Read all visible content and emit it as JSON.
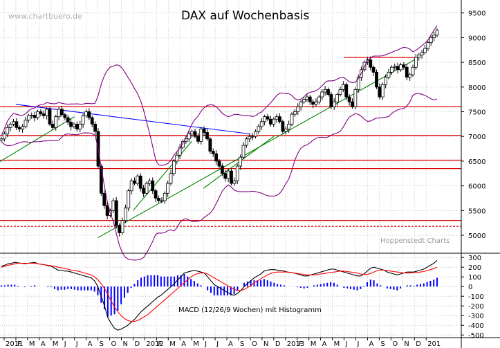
{
  "chart_data": {
    "type": "candlestick",
    "title": "DAX auf Wochenbasis",
    "watermark": "www.chartbuero.de",
    "source": "Hoppenstedt Charts",
    "macd_label": "MACD (12/26/9 Wochen) mit Histogramm",
    "price_axis": {
      "ticks": [
        5000,
        5500,
        6000,
        6500,
        7000,
        7500,
        8000,
        8500,
        9000,
        9500
      ],
      "range": [
        4650,
        9650
      ]
    },
    "macd_axis": {
      "ticks": [
        300,
        200,
        100,
        0,
        -100,
        -200,
        -300,
        -400,
        -500
      ],
      "range": [
        -520,
        330
      ]
    },
    "time_axis": {
      "labels": [
        "2011",
        "F",
        "M",
        "A",
        "M",
        "J",
        "J",
        "A",
        "S",
        "O",
        "N",
        "D",
        "2012",
        "F",
        "M",
        "A",
        "M",
        "J",
        "J",
        "A",
        "S",
        "O",
        "N",
        "D",
        "2013",
        "F",
        "M",
        "A",
        "M",
        "J",
        "J",
        "A",
        "S",
        "O",
        "N",
        "D",
        "201"
      ],
      "start": "2011-01",
      "end": "2014-01"
    },
    "weekly_close": [
      6950,
      7050,
      7180,
      7250,
      7300,
      7180,
      7150,
      7200,
      7330,
      7420,
      7430,
      7380,
      7500,
      7460,
      7420,
      7550,
      7250,
      7180,
      7400,
      7550,
      7440,
      7380,
      7290,
      7200,
      7250,
      7150,
      7250,
      7420,
      7500,
      7380,
      7250,
      7100,
      6400,
      5850,
      5600,
      5400,
      5500,
      5700,
      5200,
      5050,
      5300,
      5550,
      5900,
      6100,
      6050,
      6200,
      5950,
      5850,
      6050,
      6100,
      5900,
      5750,
      5700,
      5700,
      5850,
      6050,
      6250,
      6500,
      6620,
      6780,
      6900,
      6950,
      7050,
      7100,
      7000,
      6900,
      7150,
      7080,
      6950,
      6700,
      6650,
      6500,
      6400,
      6250,
      6150,
      6300,
      6050,
      6100,
      6400,
      6580,
      6820,
      6950,
      7000,
      7000,
      7100,
      7200,
      7300,
      7400,
      7350,
      7250,
      7350,
      7400,
      7300,
      7100,
      7150,
      7250,
      7450,
      7500,
      7600,
      7700,
      7750,
      7800,
      7700,
      7650,
      7700,
      7800,
      7900,
      7950,
      7850,
      7600,
      7700,
      7850,
      7950,
      8050,
      7800,
      7700,
      7600,
      7950,
      8200,
      8350,
      8500,
      8550,
      8400,
      8300,
      8000,
      7800,
      8050,
      8200,
      8300,
      8400,
      8420,
      8350,
      8450,
      8400,
      8200,
      8250,
      8400,
      8600,
      8650,
      8700,
      8780,
      8900,
      9000,
      9050,
      9150
    ],
    "resistance_levels": [
      7600,
      7020,
      6520,
      6350,
      5300,
      5180,
      8600
    ],
    "trend_lines": [
      {
        "name": "Abwaertstrend",
        "from": [
          "2011-02",
          7650
        ],
        "to": [
          "2012-10",
          7050
        ]
      },
      {
        "name": "Aufwaertstrend 2011",
        "from": [
          "2010-12",
          6400
        ],
        "to": [
          "2011-07",
          7400
        ]
      },
      {
        "name": "Aufwaertstrend 2011-2013",
        "from": [
          "2011-09",
          4950
        ],
        "to": [
          "2013-12",
          8550
        ]
      },
      {
        "name": "Aufwaertstrend 2012",
        "from": [
          "2012-06",
          5950
        ],
        "to": [
          "2012-12",
          7000
        ]
      },
      {
        "name": "Aufwaertstrend 2011-2012",
        "from": [
          "2011-12",
          5500
        ],
        "to": [
          "2012-05",
          6900
        ]
      }
    ],
    "macd_line": [
      210,
      220,
      235,
      240,
      250,
      245,
      240,
      235,
      240,
      245,
      250,
      235,
      230,
      225,
      215,
      210,
      190,
      170,
      170,
      160,
      160,
      150,
      140,
      130,
      120,
      110,
      100,
      90,
      60,
      0,
      -100,
      -200,
      -320,
      -380,
      -430,
      -450,
      -440,
      -420,
      -400,
      -370,
      -340,
      -300,
      -260,
      -230,
      -200,
      -170,
      -140,
      -110,
      -90,
      -60,
      -30,
      0,
      30,
      70,
      100,
      140,
      150,
      160,
      165,
      160,
      150,
      140,
      100,
      60,
      20,
      0,
      -20,
      -40,
      -60,
      -80,
      -90,
      -70,
      -40,
      0,
      30,
      60,
      90,
      110,
      130,
      160,
      170,
      175,
      175,
      170,
      165,
      160,
      150,
      145,
      140,
      130,
      120,
      110,
      110,
      120,
      130,
      140,
      150,
      160,
      170,
      180,
      180,
      170,
      160,
      150,
      140,
      130,
      120,
      110,
      110,
      130,
      160,
      190,
      200,
      190,
      180,
      170,
      150,
      140,
      130,
      120,
      130,
      140,
      150,
      150,
      150,
      160,
      170,
      180,
      200,
      220,
      240,
      270
    ],
    "signal_line": [
      200,
      210,
      220,
      225,
      235,
      240,
      240,
      240,
      240,
      240,
      240,
      235,
      230,
      225,
      220,
      215,
      210,
      200,
      195,
      185,
      180,
      170,
      165,
      160,
      150,
      140,
      130,
      120,
      100,
      70,
      30,
      -20,
      -80,
      -150,
      -210,
      -260,
      -300,
      -330,
      -350,
      -360,
      -360,
      -350,
      -330,
      -310,
      -290,
      -260,
      -230,
      -200,
      -170,
      -140,
      -110,
      -80,
      -50,
      -20,
      10,
      40,
      70,
      100,
      120,
      135,
      140,
      140,
      130,
      110,
      90,
      70,
      50,
      30,
      10,
      -10,
      -30,
      -40,
      -40,
      -30,
      -10,
      10,
      40,
      60,
      80,
      100,
      120,
      135,
      145,
      150,
      150,
      150,
      150,
      145,
      140,
      135,
      130,
      125,
      120,
      120,
      120,
      125,
      130,
      135,
      140,
      145,
      150,
      155,
      160,
      160,
      155,
      150,
      145,
      140,
      130,
      125,
      125,
      135,
      150,
      165,
      170,
      170,
      165,
      160,
      155,
      150,
      145,
      140,
      140,
      140,
      145,
      145,
      150,
      155,
      165,
      175,
      185,
      200,
      215,
      235
    ]
  },
  "colors": {
    "candle": "#000000",
    "band": "#800080",
    "downtrend": "#0000ff",
    "uptrend": "#008000",
    "resistance": "#dd0000",
    "macd": "#000000",
    "signal": "#ff0000",
    "histogram": "#0000ff",
    "grid": "#c0c0c0"
  }
}
